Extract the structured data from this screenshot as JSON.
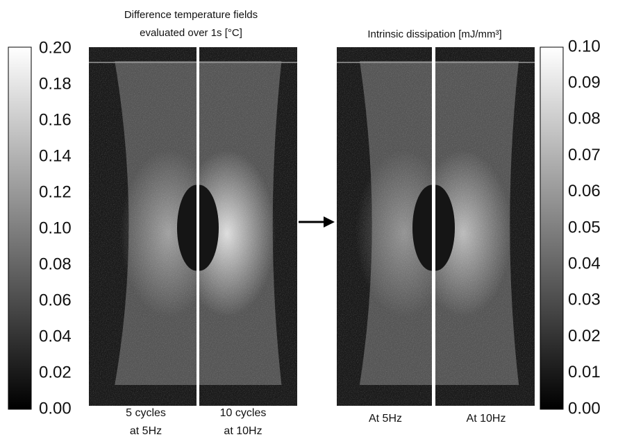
{
  "left_title": [
    "Difference temperature fields",
    "evaluated over 1s [°C]"
  ],
  "right_title": "Intrinsic dissipation [mJ/mm³]",
  "left_scale": {
    "ticks": [
      "0.20",
      "0.18",
      "0.16",
      "0.14",
      "0.12",
      "0.10",
      "0.08",
      "0.06",
      "0.04",
      "0.02",
      "0.00"
    ]
  },
  "right_scale": {
    "ticks": [
      "0.10",
      "0.09",
      "0.08",
      "0.07",
      "0.06",
      "0.05",
      "0.04",
      "0.03",
      "0.02",
      "0.01",
      "0.00"
    ]
  },
  "panels": [
    {
      "caption": [
        "5 cycles",
        "at 5Hz"
      ]
    },
    {
      "caption": [
        "10 cycles",
        "at 10Hz"
      ]
    },
    {
      "caption": [
        "At 5Hz"
      ]
    },
    {
      "caption": [
        "At 10Hz"
      ]
    }
  ]
}
